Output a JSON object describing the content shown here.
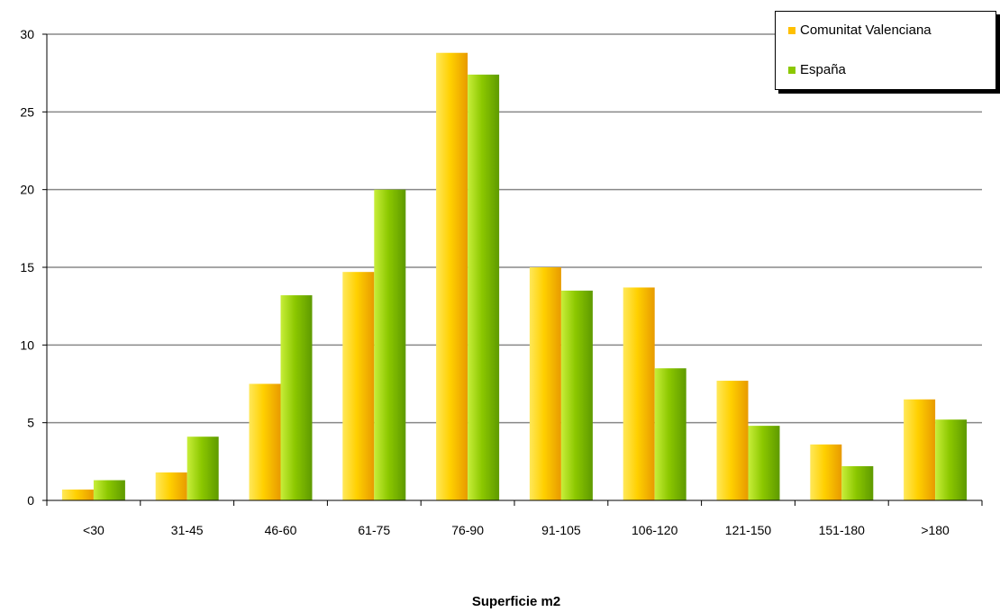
{
  "chart_data": {
    "type": "bar",
    "categories": [
      "<30",
      "31-45",
      "46-60",
      "61-75",
      "76-90",
      "91-105",
      "106-120",
      "121-150",
      "151-180",
      ">180"
    ],
    "series": [
      {
        "name": "Comunitat Valenciana",
        "color": "#FFC000",
        "values": [
          0.7,
          1.8,
          7.5,
          14.7,
          28.8,
          15.0,
          13.7,
          7.7,
          3.6,
          6.5
        ]
      },
      {
        "name": "España",
        "color": "#8CC800",
        "values": [
          1.3,
          4.1,
          13.2,
          20.0,
          27.4,
          13.5,
          8.5,
          4.8,
          2.2,
          5.2
        ]
      }
    ],
    "title": "",
    "xlabel": "Superficie m2",
    "ylabel": "",
    "ylim": [
      0,
      30
    ],
    "yticks": [
      0,
      5,
      10,
      15,
      20,
      25,
      30
    ],
    "grid": true,
    "legend_position": "top-right"
  }
}
